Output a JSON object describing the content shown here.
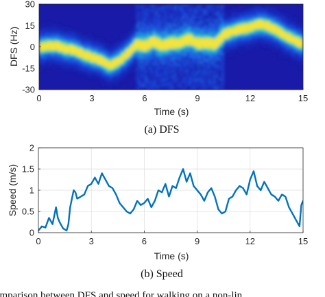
{
  "chart_data": [
    {
      "type": "heatmap",
      "caption": "(a) DFS",
      "xlabel": "Time (s)",
      "ylabel": "DFS (Hz)",
      "xlim": [
        0,
        15
      ],
      "ylim": [
        -30,
        30
      ],
      "xticks": [
        "0",
        "3",
        "6",
        "9",
        "12",
        "15"
      ],
      "yticks": [
        "30",
        "15",
        "0",
        "-15",
        "-30"
      ],
      "colormap": [
        "#0d0887",
        "#1c3fd8",
        "#1d8fe6",
        "#26c4c7",
        "#7ede6a",
        "#f5e33b"
      ],
      "background": "#1a1aa8",
      "ridge": {
        "t": [
          0,
          0.5,
          1,
          1.5,
          2,
          2.5,
          3,
          3.5,
          4,
          4.5,
          5,
          5.5,
          6,
          6.5,
          7,
          7.5,
          8,
          8.5,
          9,
          9.5,
          10,
          10.5,
          11,
          11.5,
          12,
          12.5,
          13,
          13.5,
          14,
          14.5,
          15
        ],
        "dfs": [
          0,
          1,
          1,
          -1,
          -2,
          -5,
          -7,
          -9,
          -13,
          -10,
          -5,
          2,
          1,
          4,
          1,
          3,
          3,
          6,
          3,
          3,
          2,
          9,
          11,
          13,
          14,
          16,
          15,
          12,
          8,
          5,
          2
        ]
      }
    },
    {
      "type": "line",
      "caption": "(b) Speed",
      "xlabel": "Time (s)",
      "ylabel": "Speed (m/s)",
      "xlim": [
        0,
        15
      ],
      "ylim": [
        0,
        2
      ],
      "xticks": [
        "0",
        "3",
        "6",
        "9",
        "12",
        "15"
      ],
      "yticks": [
        "0",
        "0.5",
        "1",
        "1.5",
        "2"
      ],
      "grid": true,
      "line_color": "#0072bd",
      "series": [
        {
          "x": [
            0,
            0.2,
            0.4,
            0.6,
            0.8,
            1.0,
            1.1,
            1.2,
            1.4,
            1.6,
            1.7,
            1.8,
            2.0,
            2.1,
            2.2,
            2.4,
            2.6,
            2.8,
            3.0,
            3.2,
            3.4,
            3.6,
            3.8,
            4.0,
            4.2,
            4.4,
            4.6,
            4.8,
            5.0,
            5.2,
            5.4,
            5.6,
            5.8,
            6.0,
            6.2,
            6.4,
            6.6,
            6.8,
            7.0,
            7.2,
            7.4,
            7.6,
            7.8,
            8.0,
            8.2,
            8.4,
            8.6,
            8.8,
            9.0,
            9.2,
            9.4,
            9.6,
            9.8,
            10.0,
            10.2,
            10.4,
            10.6,
            10.8,
            11.0,
            11.2,
            11.4,
            11.6,
            11.8,
            12.0,
            12.2,
            12.4,
            12.6,
            12.8,
            13.0,
            13.2,
            13.4,
            13.6,
            13.8,
            14.0,
            14.2,
            14.4,
            14.6,
            14.8,
            14.9,
            15.0
          ],
          "y": [
            0.05,
            0.15,
            0.12,
            0.35,
            0.2,
            0.6,
            0.35,
            0.25,
            0.1,
            0.05,
            0.2,
            0.6,
            1.0,
            0.95,
            0.8,
            0.85,
            0.9,
            1.1,
            1.15,
            1.3,
            1.15,
            1.4,
            1.25,
            1.1,
            1.05,
            0.9,
            0.7,
            0.6,
            0.5,
            0.45,
            0.55,
            0.75,
            0.65,
            0.7,
            0.8,
            0.6,
            0.75,
            1.0,
            0.95,
            1.15,
            0.85,
            1.1,
            1.05,
            1.3,
            1.5,
            1.2,
            1.4,
            1.1,
            1.0,
            0.9,
            0.75,
            0.95,
            1.05,
            0.85,
            0.55,
            0.45,
            0.5,
            0.8,
            0.85,
            1.0,
            1.1,
            1.05,
            0.9,
            1.25,
            1.45,
            1.1,
            1.0,
            1.2,
            1.05,
            0.9,
            0.85,
            0.75,
            0.9,
            0.85,
            0.6,
            0.45,
            0.3,
            0.15,
            0.65,
            0.75
          ]
        }
      ]
    }
  ],
  "bottom_text": "Comparison between DFS and speed for walking on a non-lin"
}
